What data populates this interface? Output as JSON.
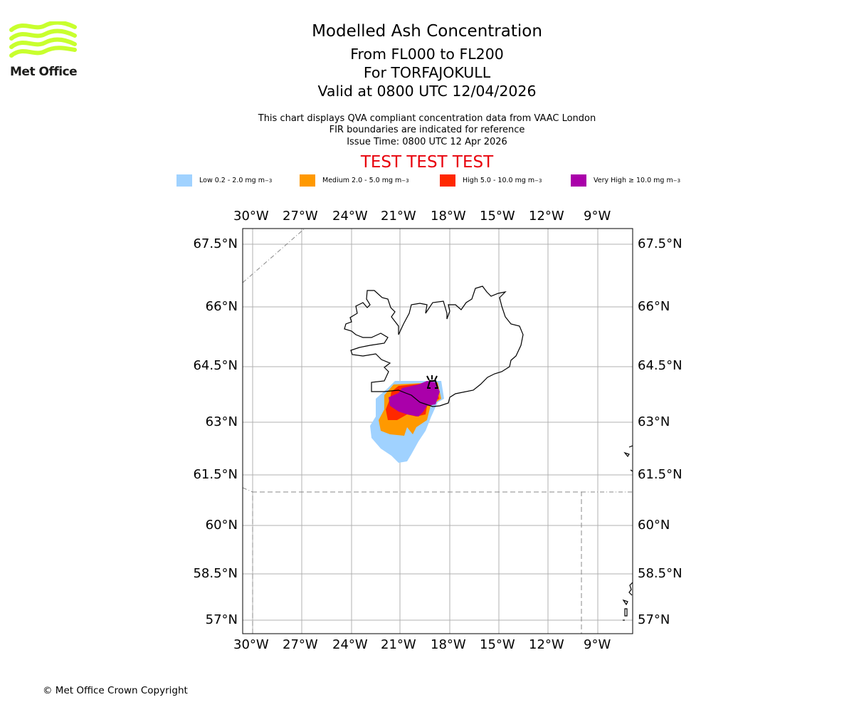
{
  "header": {
    "title": "Modelled Ash Concentration",
    "levels": "From FL000 to FL200",
    "volcano": "For TORFAJOKULL",
    "valid": "Valid at 0800 UTC 12/04/2026",
    "note1": "This chart displays QVA compliant concentration data from VAAC London",
    "note2": "FIR boundaries are indicated for reference",
    "issue": "Issue Time: 0800 UTC 12 Apr 2026",
    "test_banner": "TEST TEST TEST"
  },
  "logo": {
    "text": "Met Office",
    "color": "#c8ff2e"
  },
  "legend": [
    {
      "label": "Low 0.2 - 2.0 mg m",
      "exp": "−3",
      "color": "#a0d2ff"
    },
    {
      "label": "Medium 2.0 - 5.0 mg m",
      "exp": "−3",
      "color": "#ff9900"
    },
    {
      "label": "High 5.0 - 10.0 mg m",
      "exp": "−3",
      "color": "#ff2800"
    },
    {
      "label": "Very High  ≥  10.0 mg m",
      "exp": "−3",
      "color": "#aa00aa"
    }
  ],
  "map": {
    "lon_ticks": [
      "30°W",
      "27°W",
      "24°W",
      "21°W",
      "18°W",
      "15°W",
      "12°W",
      "9°W"
    ],
    "lat_ticks": [
      "67.5°N",
      "66°N",
      "64.5°N",
      "63°N",
      "61.5°N",
      "60°N",
      "58.5°N",
      "57°N"
    ]
  },
  "footer": {
    "copyright": "© Met Office Crown Copyright"
  }
}
